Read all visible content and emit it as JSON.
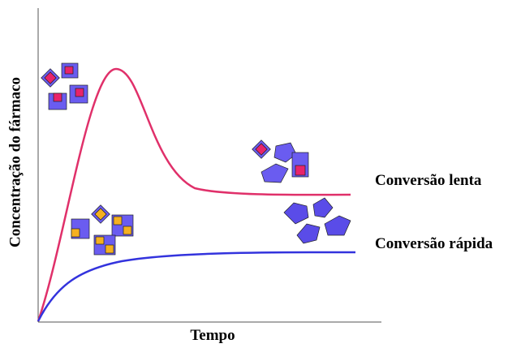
{
  "axes": {
    "y_label": "Concentração do fármaco",
    "x_label": "Tempo"
  },
  "curves": [
    {
      "label": "Conversão lenta"
    },
    {
      "label": "Conversão rápida"
    }
  ]
}
